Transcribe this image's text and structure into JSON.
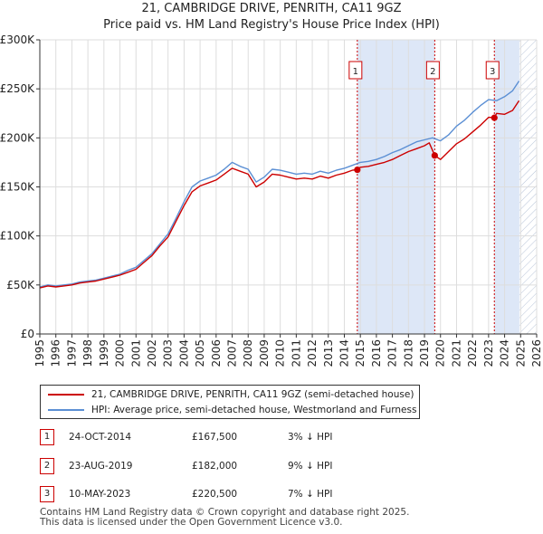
{
  "title_line1": "21, CAMBRIDGE DRIVE, PENRITH, CA11 9GZ",
  "title_line2": "Price paid vs. HM Land Registry's House Price Index (HPI)",
  "legend": {
    "property": "21, CAMBRIDGE DRIVE, PENRITH, CA11 9GZ (semi-detached house)",
    "hpi": "HPI: Average price, semi-detached house, Westmorland and Furness"
  },
  "colors": {
    "property": "#cc0000",
    "hpi": "#5b8fd4",
    "shade": "#dde7f7",
    "grid": "#dddddd"
  },
  "sales": [
    {
      "num": "1",
      "date": "24-OCT-2014",
      "price": "£167,500",
      "hpi": "3% ↓ HPI"
    },
    {
      "num": "2",
      "date": "23-AUG-2019",
      "price": "£182,000",
      "hpi": "9% ↓ HPI"
    },
    {
      "num": "3",
      "date": "10-MAY-2023",
      "price": "£220,500",
      "hpi": "7% ↓ HPI"
    }
  ],
  "footer": {
    "line1": "Contains HM Land Registry data © Crown copyright and database right 2025.",
    "line2": "This data is licensed under the Open Government Licence v3.0."
  },
  "chart_data": {
    "type": "line",
    "title": "21, CAMBRIDGE DRIVE, PENRITH, CA11 9GZ — Price paid vs. HM Land Registry's House Price Index (HPI)",
    "xlabel": "",
    "ylabel": "",
    "xlim": [
      1995,
      2026
    ],
    "ylim": [
      0,
      300000
    ],
    "yticks": [
      0,
      50000,
      100000,
      150000,
      200000,
      250000,
      300000
    ],
    "ytick_labels": [
      "£0",
      "£50K",
      "£100K",
      "£150K",
      "£200K",
      "£250K",
      "£300K"
    ],
    "xticks": [
      1995,
      1996,
      1997,
      1998,
      1999,
      2000,
      2001,
      2002,
      2003,
      2004,
      2005,
      2006,
      2007,
      2008,
      2009,
      2010,
      2011,
      2012,
      2013,
      2014,
      2015,
      2016,
      2017,
      2018,
      2019,
      2020,
      2021,
      2022,
      2023,
      2024,
      2025,
      2026
    ],
    "xtick_labels": [
      "1995",
      "1996",
      "1997",
      "1998",
      "1999",
      "2000",
      "2001",
      "2002",
      "2003",
      "2004",
      "2005",
      "2006",
      "2007",
      "2008",
      "2009",
      "2010",
      "2011",
      "2012",
      "2013",
      "2014",
      "2015",
      "2016",
      "2017",
      "2018",
      "2019",
      "2020",
      "2021",
      "2022",
      "2023",
      "2024",
      "2025",
      "2026"
    ],
    "grid": true,
    "shaded_ranges": [
      [
        2014.81,
        2019.64
      ],
      [
        2023.36,
        2024.92
      ]
    ],
    "future_hatch_from": 2024.92,
    "series": [
      {
        "name": "HPI: Average price, semi-detached house, Westmorland and Furness",
        "x": [
          1995,
          1995.5,
          1996,
          1996.5,
          1997,
          1997.5,
          1998,
          1998.5,
          1999,
          1999.5,
          2000,
          2000.5,
          2001,
          2001.5,
          2002,
          2002.5,
          2003,
          2003.5,
          2004,
          2004.5,
          2005,
          2005.5,
          2006,
          2006.5,
          2007,
          2007.5,
          2008,
          2008.5,
          2009,
          2009.5,
          2010,
          2010.5,
          2011,
          2011.5,
          2012,
          2012.5,
          2013,
          2013.5,
          2014,
          2014.5,
          2015,
          2015.5,
          2016,
          2016.5,
          2017,
          2017.5,
          2018,
          2018.5,
          2019,
          2019.5,
          2020,
          2020.5,
          2021,
          2021.5,
          2022,
          2022.5,
          2023,
          2023.5,
          2024,
          2024.5,
          2024.9
        ],
        "y": [
          48000,
          50000,
          49000,
          50000,
          51000,
          53000,
          54000,
          55000,
          57000,
          59000,
          61000,
          65000,
          68000,
          75000,
          82000,
          92000,
          102000,
          118000,
          135000,
          150000,
          156000,
          159000,
          162000,
          168000,
          175000,
          171000,
          168000,
          155000,
          160000,
          168000,
          167000,
          165000,
          163000,
          164000,
          163000,
          166000,
          164000,
          167000,
          169000,
          172000,
          175000,
          176000,
          178000,
          181000,
          185000,
          188000,
          192000,
          196000,
          198000,
          200000,
          197000,
          203000,
          212000,
          218000,
          226000,
          233000,
          239000,
          238000,
          242000,
          248000,
          258000
        ]
      },
      {
        "name": "21, CAMBRIDGE DRIVE, PENRITH, CA11 9GZ (semi-detached house)",
        "x": [
          1995,
          1995.5,
          1996,
          1996.5,
          1997,
          1997.5,
          1998,
          1998.5,
          1999,
          1999.5,
          2000,
          2000.5,
          2001,
          2001.5,
          2002,
          2002.5,
          2003,
          2003.5,
          2004,
          2004.5,
          2005,
          2005.5,
          2006,
          2006.5,
          2007,
          2007.5,
          2008,
          2008.5,
          2009,
          2009.5,
          2010,
          2010.5,
          2011,
          2011.5,
          2012,
          2012.5,
          2013,
          2013.5,
          2014,
          2014.5,
          2014.81,
          2015,
          2015.5,
          2016,
          2016.5,
          2017,
          2017.5,
          2018,
          2018.5,
          2019,
          2019.3,
          2019.64,
          2020,
          2020.5,
          2021,
          2021.5,
          2022,
          2022.5,
          2023,
          2023.36,
          2023.5,
          2024,
          2024.5,
          2024.9
        ],
        "y": [
          47000,
          49000,
          48000,
          49000,
          50000,
          52000,
          53000,
          54000,
          56000,
          58000,
          60000,
          63000,
          66000,
          73000,
          80000,
          90000,
          99000,
          115000,
          131000,
          145000,
          151000,
          154000,
          157000,
          163000,
          169000,
          166000,
          163000,
          150000,
          155000,
          163000,
          162000,
          160000,
          158000,
          159000,
          158000,
          161000,
          159000,
          162000,
          164000,
          167000,
          167500,
          170000,
          171000,
          173000,
          175000,
          178000,
          182000,
          186000,
          189000,
          192000,
          195000,
          182000,
          178000,
          186000,
          194000,
          199000,
          206000,
          213000,
          221000,
          220500,
          225000,
          224000,
          228000,
          238000
        ]
      }
    ],
    "sale_markers": [
      {
        "label": "1",
        "x": 2014.81,
        "y": 167500
      },
      {
        "label": "2",
        "x": 2019.64,
        "y": 182000
      },
      {
        "label": "3",
        "x": 2023.36,
        "y": 220500
      }
    ]
  }
}
